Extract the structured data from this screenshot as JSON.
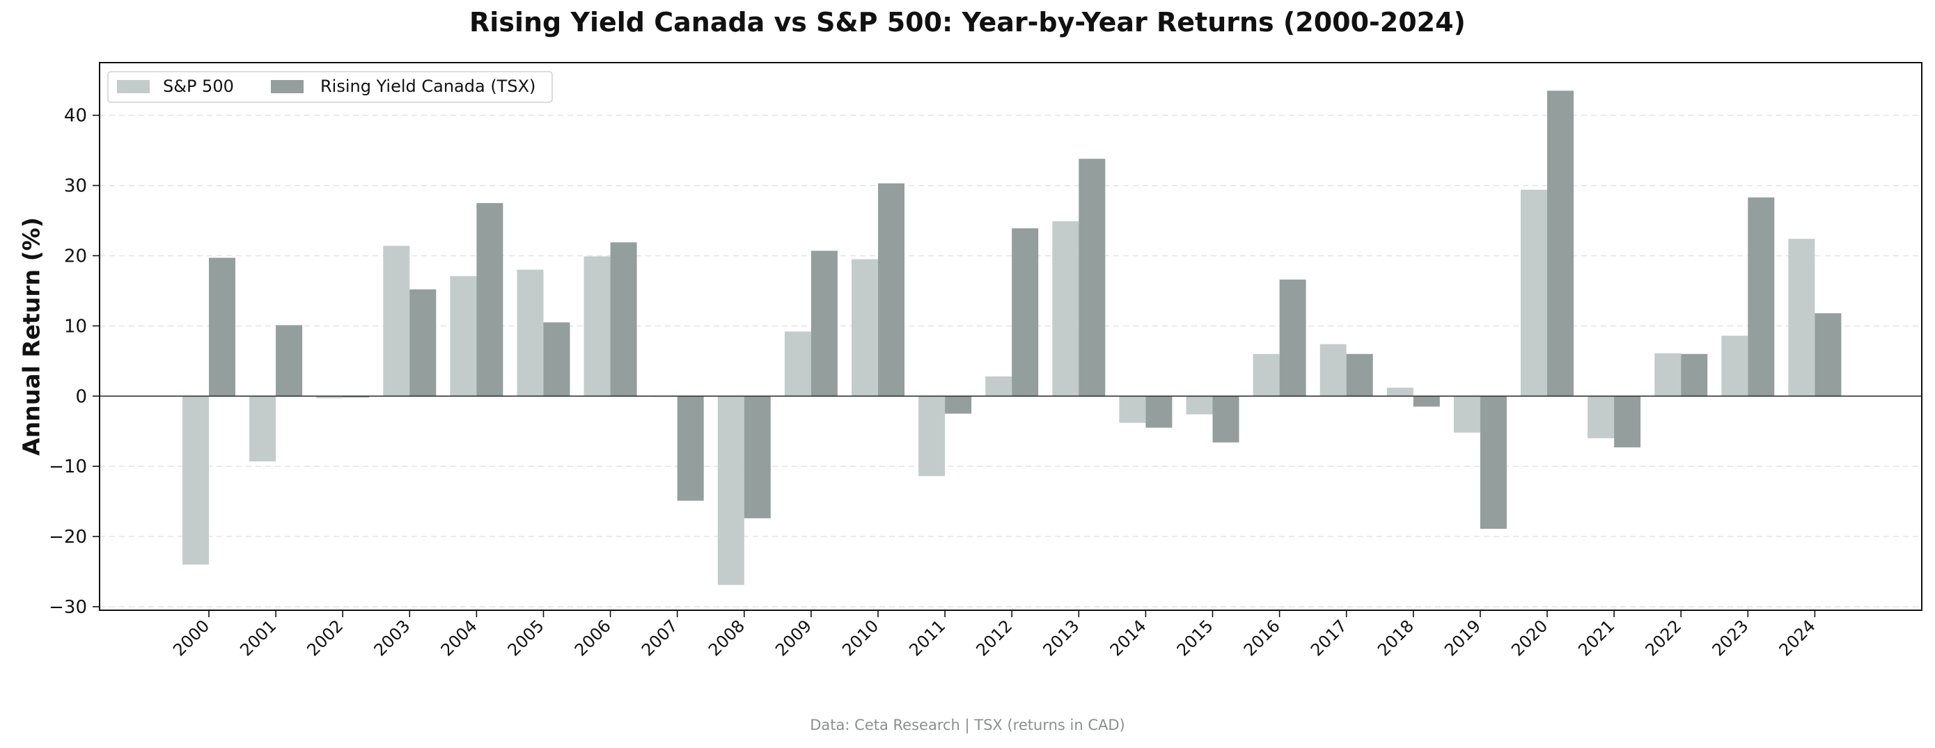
{
  "chart_data": {
    "type": "bar",
    "title": "Rising Yield Canada vs S&P 500: Year-by-Year Returns (2000-2024)",
    "xlabel": "",
    "ylabel": "Annual Return (%)",
    "ylim": [
      -30.5,
      47.5
    ],
    "yticks": [
      -30,
      -20,
      -10,
      0,
      10,
      20,
      30,
      40
    ],
    "grid": true,
    "legend_position": "top-left",
    "categories": [
      "2000",
      "2001",
      "2002",
      "2003",
      "2004",
      "2005",
      "2006",
      "2007",
      "2008",
      "2009",
      "2010",
      "2011",
      "2012",
      "2013",
      "2014",
      "2015",
      "2016",
      "2017",
      "2018",
      "2019",
      "2020",
      "2021",
      "2022",
      "2023",
      "2024"
    ],
    "series": [
      {
        "name": "S&P 500",
        "color": "#c3cccb",
        "values": [
          -24.0,
          -9.3,
          -0.3,
          21.4,
          17.1,
          18.0,
          19.9,
          0.0,
          -26.9,
          9.2,
          19.5,
          -11.4,
          2.8,
          24.9,
          -3.8,
          -2.6,
          6.0,
          7.4,
          1.2,
          -5.2,
          29.4,
          -6.0,
          6.1,
          8.6,
          22.4
        ]
      },
      {
        "name": "Rising Yield Canada (TSX)",
        "color": "#939e9d",
        "values": [
          19.7,
          10.1,
          -0.2,
          15.2,
          27.5,
          10.5,
          21.9,
          -14.9,
          -17.4,
          20.7,
          30.3,
          -2.5,
          23.9,
          33.8,
          -4.5,
          -6.6,
          16.6,
          6.0,
          -1.5,
          -18.9,
          43.5,
          -7.3,
          6.0,
          28.3,
          11.8
        ]
      }
    ]
  },
  "footnote": "Data: Ceta Research | TSX (returns in CAD)"
}
